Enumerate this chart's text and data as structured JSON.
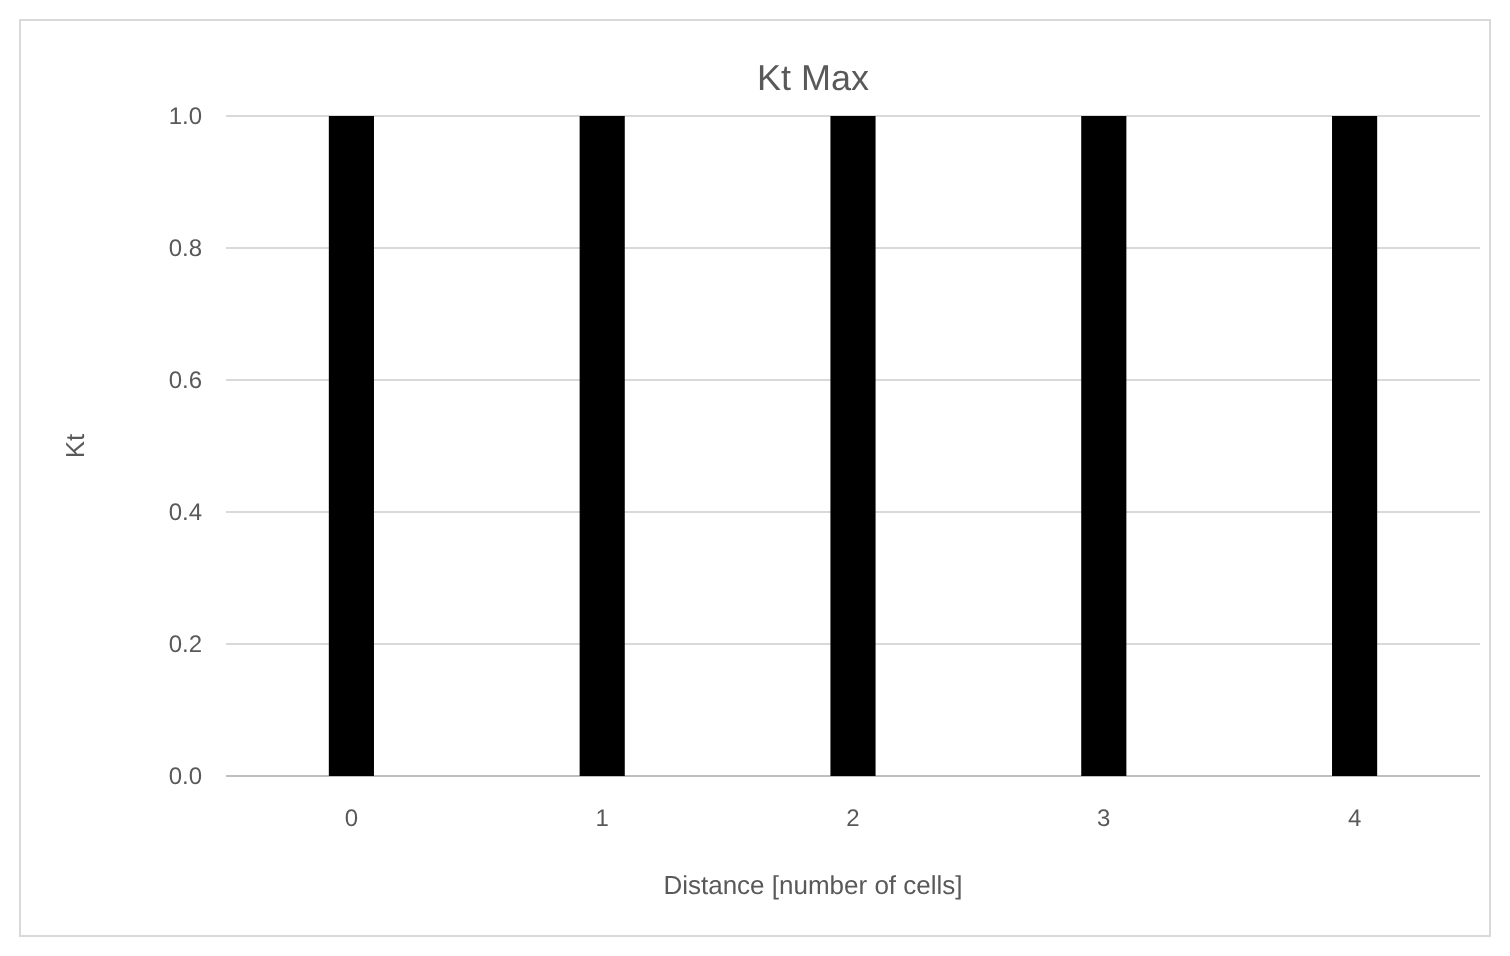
{
  "chart_data": {
    "type": "bar",
    "title": "Kt Max",
    "xlabel": "Distance [number of cells]",
    "ylabel": "Kt",
    "categories": [
      "0",
      "1",
      "2",
      "3",
      "4"
    ],
    "values": [
      1.0,
      1.0,
      1.0,
      1.0,
      1.0
    ],
    "color": "#000000",
    "ylim": [
      0,
      1
    ],
    "yticks": [
      {
        "value": 0,
        "label": "0.0"
      },
      {
        "value": 0.2,
        "label": "0.2"
      },
      {
        "value": 0.4,
        "label": "0.4"
      },
      {
        "value": 0.6,
        "label": "0.6"
      },
      {
        "value": 0.8,
        "label": "0.8"
      },
      {
        "value": 1,
        "label": "1.0"
      }
    ],
    "grid": "y"
  }
}
